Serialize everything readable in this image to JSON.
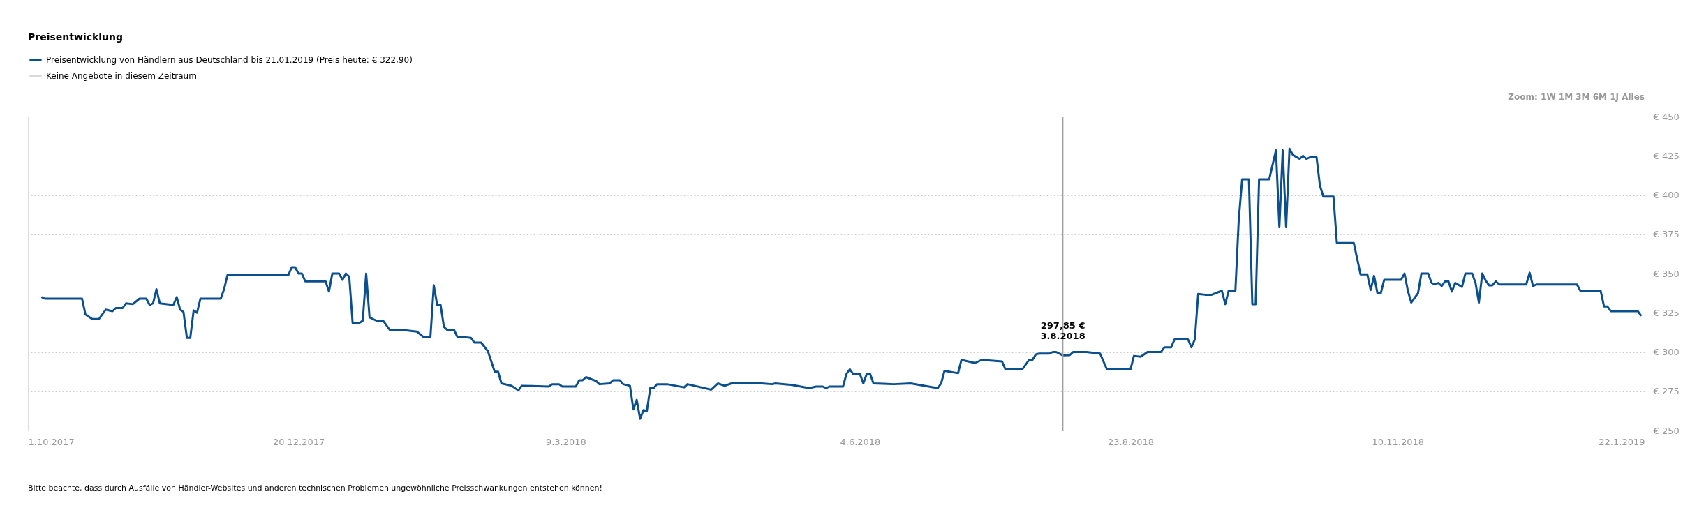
{
  "chart_data": {
    "type": "line",
    "title": "Preisentwicklung",
    "xlim": [
      "2017-10-01",
      "2019-01-22"
    ],
    "xticks": [
      {
        "value": "2017-10-01",
        "label": "1.10.2017"
      },
      {
        "value": "2017-12-20",
        "label": "20.12.2017"
      },
      {
        "value": "2018-03-09",
        "label": "9.3.2018"
      },
      {
        "value": "2018-06-04",
        "label": "4.6.2018"
      },
      {
        "value": "2018-08-23",
        "label": "23.8.2018"
      },
      {
        "value": "2018-11-10",
        "label": "10.11.2018"
      },
      {
        "value": "2019-01-22",
        "label": "22.1.2019"
      }
    ],
    "ylim": [
      250,
      450
    ],
    "yticks": [
      {
        "value": 250,
        "label": "€ 250"
      },
      {
        "value": 275,
        "label": "€ 275"
      },
      {
        "value": 300,
        "label": "€ 300"
      },
      {
        "value": 325,
        "label": "€ 325"
      },
      {
        "value": 350,
        "label": "€ 350"
      },
      {
        "value": 375,
        "label": "€ 375"
      },
      {
        "value": 400,
        "label": "€ 400"
      },
      {
        "value": 425,
        "label": "€ 425"
      },
      {
        "value": 450,
        "label": "€ 450"
      }
    ],
    "grid": "y",
    "legend": "top left",
    "line_style": "solid",
    "series": [
      {
        "name": "Preisentwicklung von Händlern aus Deutschland bis 21.01.2019 (Preis heute: € 322,90)",
        "color": "#0b4f8e",
        "x": [
          "2017-10-05",
          "2017-10-06",
          "2017-10-17",
          "2017-10-18",
          "2017-10-20",
          "2017-10-22",
          "2017-10-24",
          "2017-10-26",
          "2017-10-27",
          "2017-10-29",
          "2017-10-30",
          "2017-11-01",
          "2017-11-03",
          "2017-11-05",
          "2017-11-06",
          "2017-11-07",
          "2017-11-08",
          "2017-11-09",
          "2017-11-13",
          "2017-11-14",
          "2017-11-15",
          "2017-11-16",
          "2017-11-17",
          "2017-11-18",
          "2017-11-19",
          "2017-11-20",
          "2017-11-21",
          "2017-11-27",
          "2017-11-28",
          "2017-11-29",
          "2017-12-17",
          "2017-12-18",
          "2017-12-19",
          "2017-12-20",
          "2017-12-21",
          "2017-12-22",
          "2017-12-28",
          "2017-12-29",
          "2017-12-30",
          "2018-01-01",
          "2018-01-02",
          "2018-01-03",
          "2018-01-04",
          "2018-01-05",
          "2018-01-07",
          "2018-01-08",
          "2018-01-09",
          "2018-01-10",
          "2018-01-12",
          "2018-01-14",
          "2018-01-16",
          "2018-01-20",
          "2018-01-24",
          "2018-01-26",
          "2018-01-28",
          "2018-01-29",
          "2018-01-30",
          "2018-01-31",
          "2018-02-01",
          "2018-02-02",
          "2018-02-04",
          "2018-02-05",
          "2018-02-07",
          "2018-02-09",
          "2018-02-10",
          "2018-02-12",
          "2018-02-14",
          "2018-02-16",
          "2018-02-17",
          "2018-02-18",
          "2018-02-21",
          "2018-02-23",
          "2018-02-24",
          "2018-03-04",
          "2018-03-05",
          "2018-03-07",
          "2018-03-08",
          "2018-03-12",
          "2018-03-13",
          "2018-03-14",
          "2018-03-15",
          "2018-03-18",
          "2018-03-19",
          "2018-03-22",
          "2018-03-23",
          "2018-03-25",
          "2018-03-26",
          "2018-03-28",
          "2018-03-29",
          "2018-03-30",
          "2018-03-31",
          "2018-04-01",
          "2018-04-02",
          "2018-04-03",
          "2018-04-04",
          "2018-04-05",
          "2018-04-08",
          "2018-04-13",
          "2018-04-14",
          "2018-04-21",
          "2018-04-23",
          "2018-04-25",
          "2018-04-27",
          "2018-04-30",
          "2018-05-06",
          "2018-05-09",
          "2018-05-10",
          "2018-05-15",
          "2018-05-20",
          "2018-05-22",
          "2018-05-24",
          "2018-05-25",
          "2018-05-26",
          "2018-05-30",
          "2018-05-31",
          "2018-06-01",
          "2018-06-02",
          "2018-06-04",
          "2018-06-05",
          "2018-06-06",
          "2018-06-07",
          "2018-06-08",
          "2018-06-14",
          "2018-06-19",
          "2018-06-27",
          "2018-06-28",
          "2018-06-29",
          "2018-07-03",
          "2018-07-04",
          "2018-07-08",
          "2018-07-10",
          "2018-07-16",
          "2018-07-17",
          "2018-07-22",
          "2018-07-24",
          "2018-07-25",
          "2018-07-26",
          "2018-07-27",
          "2018-07-30",
          "2018-07-31",
          "2018-08-01",
          "2018-08-03",
          "2018-08-05",
          "2018-08-06",
          "2018-08-10",
          "2018-08-14",
          "2018-08-16",
          "2018-08-23",
          "2018-08-24",
          "2018-08-26",
          "2018-08-28",
          "2018-09-01",
          "2018-09-02",
          "2018-09-04",
          "2018-09-05",
          "2018-09-09",
          "2018-09-10",
          "2018-09-11",
          "2018-09-12",
          "2018-09-14",
          "2018-09-16",
          "2018-09-19",
          "2018-09-20",
          "2018-09-21",
          "2018-09-23",
          "2018-09-24",
          "2018-09-25",
          "2018-09-27",
          "2018-09-28",
          "2018-09-29",
          "2018-09-30",
          "2018-10-03",
          "2018-10-05",
          "2018-10-06",
          "2018-10-07",
          "2018-10-08",
          "2018-10-09",
          "2018-10-10",
          "2018-10-12",
          "2018-10-13",
          "2018-10-14",
          "2018-10-15",
          "2018-10-17",
          "2018-10-18",
          "2018-10-19",
          "2018-10-22",
          "2018-10-23",
          "2018-10-28",
          "2018-10-30",
          "2018-11-01",
          "2018-11-02",
          "2018-11-03",
          "2018-11-04",
          "2018-11-05",
          "2018-11-06",
          "2018-11-11",
          "2018-11-12",
          "2018-11-13",
          "2018-11-14",
          "2018-11-16",
          "2018-11-17",
          "2018-11-19",
          "2018-11-20",
          "2018-11-21",
          "2018-11-22",
          "2018-11-23",
          "2018-11-24",
          "2018-11-25",
          "2018-11-26",
          "2018-11-27",
          "2018-11-29",
          "2018-11-30",
          "2018-12-02",
          "2018-12-03",
          "2018-12-04",
          "2018-12-05",
          "2018-12-06",
          "2018-12-07",
          "2018-12-08",
          "2018-12-09",
          "2018-12-10",
          "2018-12-18",
          "2018-12-19",
          "2018-12-20",
          "2018-12-21",
          "2019-01-02",
          "2019-01-03",
          "2019-01-09",
          "2019-01-10",
          "2019-01-11",
          "2019-01-12",
          "2019-01-20",
          "2019-01-21"
        ],
        "values": [
          335,
          334,
          334,
          324,
          321,
          321,
          327,
          326,
          328,
          328,
          331,
          330.5,
          334,
          334,
          330,
          331,
          340,
          331,
          330,
          335,
          327,
          325.5,
          309,
          309,
          326.5,
          325,
          334,
          334,
          340,
          349,
          349,
          354,
          354,
          350,
          350,
          345,
          345,
          338.5,
          350,
          350,
          346,
          350,
          348,
          318.5,
          318.5,
          320,
          350,
          322,
          320,
          320,
          314,
          314,
          313,
          309.5,
          309.5,
          342.5,
          330,
          330,
          316,
          314,
          314,
          309.5,
          309.5,
          309,
          306,
          306,
          300.5,
          287.5,
          287.5,
          280,
          278.5,
          275.5,
          278.5,
          278,
          279.5,
          279.5,
          278,
          278,
          282,
          282,
          284,
          281.5,
          279.5,
          280,
          282,
          282,
          279.5,
          278.5,
          263.5,
          269.5,
          257.5,
          263,
          262.5,
          277,
          277,
          279.5,
          279.5,
          277.5,
          279.5,
          276,
          280,
          278.5,
          280,
          280,
          280,
          279.5,
          280,
          279,
          277,
          278,
          278,
          277,
          278,
          278,
          286,
          289,
          286,
          286,
          280,
          286,
          286,
          280,
          279.5,
          280,
          277,
          280,
          288,
          286.5,
          295,
          293,
          295,
          294,
          289,
          289,
          295,
          295,
          298.5,
          299,
          299,
          300,
          300,
          297.85,
          298,
          300,
          300,
          299,
          289,
          289,
          297.5,
          297,
          300,
          300,
          303,
          303,
          308,
          308,
          303,
          308,
          337,
          336.5,
          336.5,
          339,
          330.5,
          339,
          339,
          384.5,
          410,
          410,
          330.5,
          330.5,
          410,
          410,
          428.5,
          379.5,
          428.5,
          379.5,
          429.5,
          425.5,
          423,
          425,
          423,
          424,
          424,
          406,
          399,
          399,
          369.5,
          369.5,
          349.5,
          349.5,
          339.5,
          348.5,
          337.5,
          337.5,
          346,
          346,
          350,
          339,
          331.5,
          337.5,
          350,
          350,
          344,
          343,
          344,
          342,
          345,
          345,
          338.5,
          344,
          341.5,
          350,
          350,
          344,
          331.5,
          350,
          345.5,
          342.5,
          342.5,
          345,
          343,
          343,
          350.5,
          342,
          343,
          343,
          339,
          339,
          329,
          329,
          326,
          326,
          322.9
        ]
      },
      {
        "name": "Keine Angebote in diesem Zeitraum",
        "color": "#d9d9d9"
      }
    ],
    "ref_lines": [
      {
        "axis": "x",
        "value": "2018-08-03",
        "color": "#a0a0a0",
        "line_style": "solid"
      }
    ],
    "annotations": [
      "Zoom: 1W 1M 3M 6M 1J Alles",
      {
        "text": "297,85 €\n3.8.2018",
        "x": "2018-08-03",
        "y": 297.85
      },
      "Bitte beachte, dass durch Ausfälle von Händler-Websites und anderen technischen Problemen ungewöhnliche Preisschwankungen entstehen können!"
    ]
  }
}
